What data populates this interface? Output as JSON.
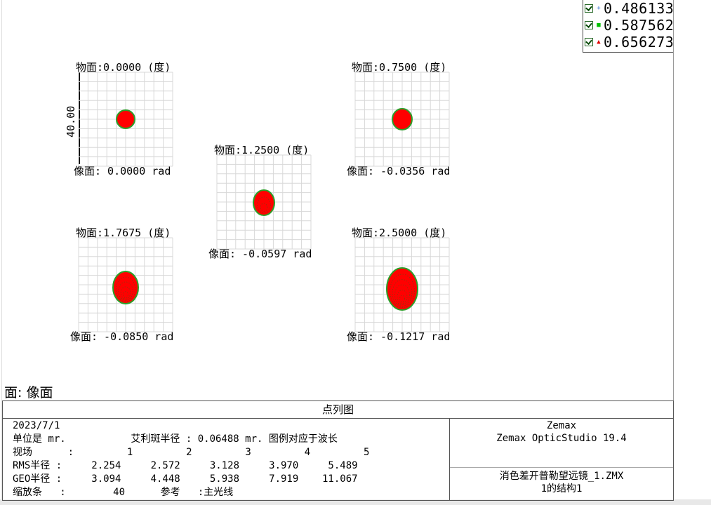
{
  "legend": [
    {
      "value": "0.486133",
      "marker": "+",
      "color": "#3070d0"
    },
    {
      "value": "0.587562",
      "marker": "■",
      "color": "#00c000"
    },
    {
      "value": "0.656273",
      "marker": "▲",
      "color": "#e00000"
    }
  ],
  "scale_label": "40.00",
  "panels": [
    {
      "object": "物面:0.0000 (度)",
      "image": "像面: 0.0000 rad"
    },
    {
      "object": "物面:0.7500 (度)",
      "image": "像面: -0.0356 rad"
    },
    {
      "object": "物面:1.2500 (度)",
      "image": "像面: -0.0597 rad"
    },
    {
      "object": "物面:1.7675 (度)",
      "image": "像面: -0.0850 rad"
    },
    {
      "object": "物面:2.5000 (度)",
      "image": "像面: -0.1217 rad"
    }
  ],
  "surface_label": "面: 像面",
  "info": {
    "title": "点列图",
    "date": "2023/7/1",
    "units_line": "单位是 mr.           艾利斑半径 : 0.06488 mr. 图例对应于波长",
    "field_line": "视场      :         1         2         3         4         5",
    "rms_line": "RMS半径 :     2.254     2.572     3.128     3.970     5.489",
    "geo_line": "GEO半径 :     3.094     4.448     5.938     7.919    11.067",
    "scale_line": "缩放条   :        40      参考   :主光线",
    "company": "Zemax",
    "product": "Zemax OpticStudio 19.4",
    "file": "消色差开普勒望远镜_1.ZMX",
    "config": "1的结构1"
  },
  "colors": {
    "spot_fill": "#ff0000",
    "spot_edge": "#2aa02a",
    "grid": "#d8d8d8"
  }
}
